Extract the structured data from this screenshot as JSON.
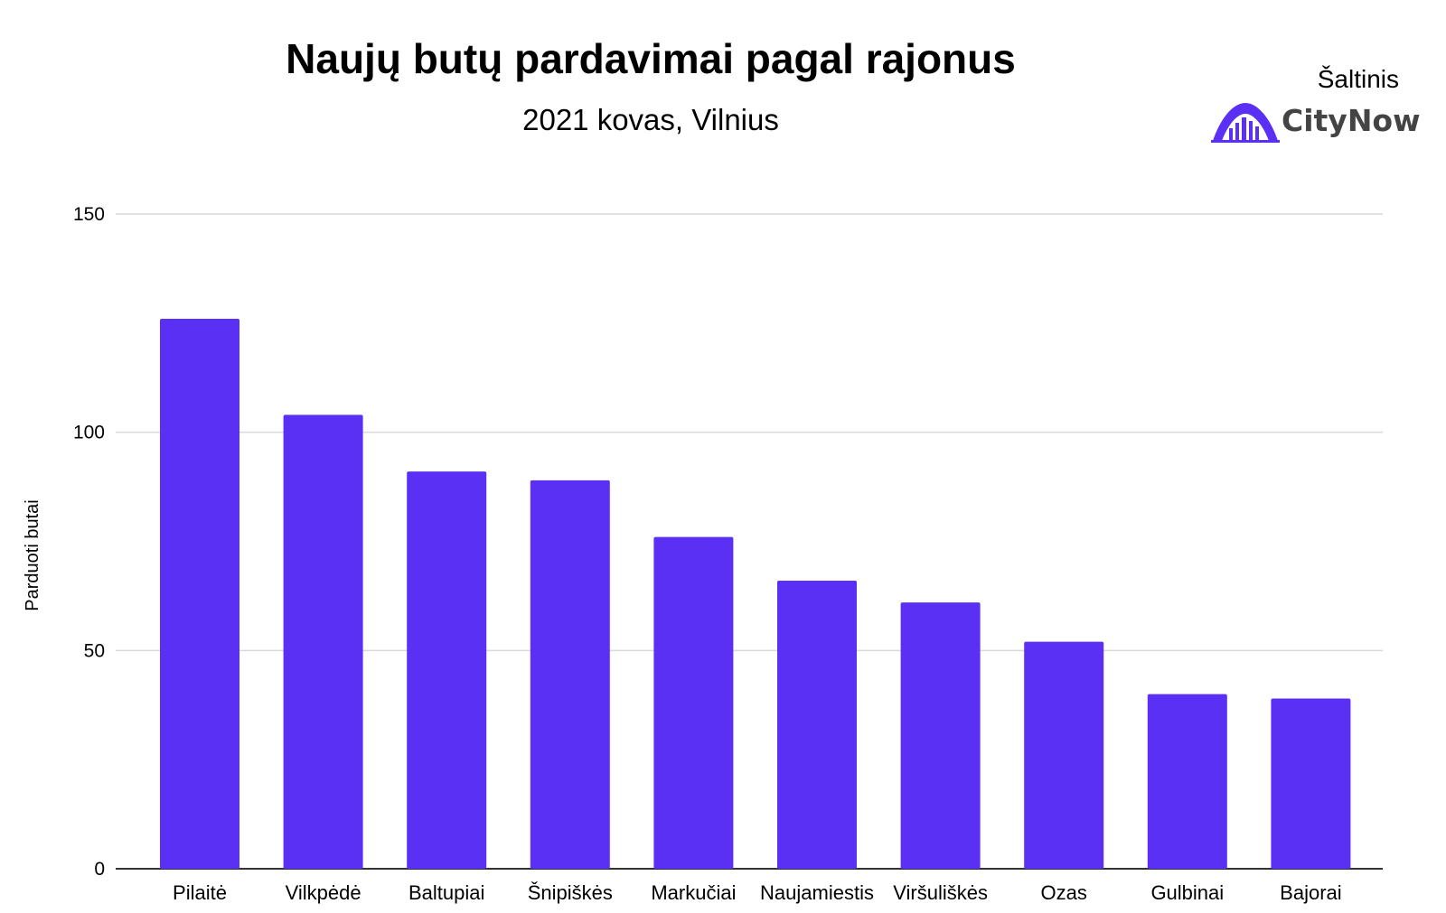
{
  "chart_data": {
    "type": "bar",
    "title": "Naujų butų pardavimai pagal rajonus",
    "subtitle": "2021 kovas, Vilnius",
    "ylabel": "Parduoti butai",
    "xlabel": "",
    "ylim": [
      0,
      150
    ],
    "yticks": [
      0,
      50,
      100,
      150
    ],
    "grid": true,
    "categories": [
      "Pilaitė",
      "Vilkpėdė",
      "Baltupiai",
      "Šnipiškės",
      "Markučiai",
      "Naujamiestis",
      "Viršuliškės",
      "Ozas",
      "Gulbinai",
      "Bajorai"
    ],
    "values": [
      126,
      104,
      91,
      89,
      76,
      66,
      61,
      52,
      40,
      39
    ],
    "bar_color": "#5a30f4"
  },
  "source": {
    "label": "Šaltinis",
    "brand": "CityNow",
    "brand_color": "#5a30f4"
  }
}
